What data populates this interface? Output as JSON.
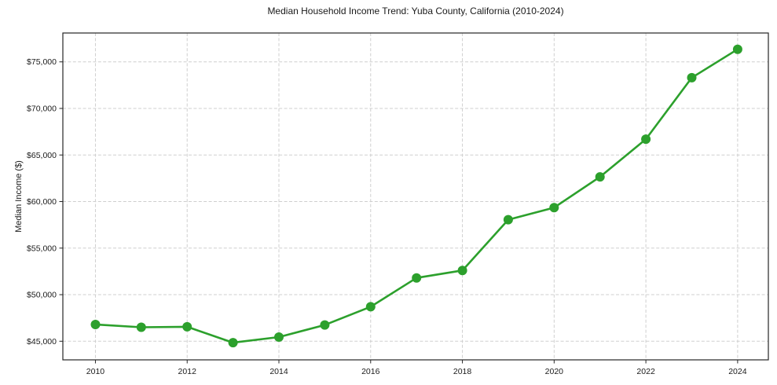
{
  "chart_data": {
    "type": "line",
    "title": "Median Household Income Trend: Yuba County, California (2010-2024)",
    "xlabel": "",
    "ylabel": "Median Income ($)",
    "x": [
      2010,
      2011,
      2012,
      2013,
      2014,
      2015,
      2016,
      2017,
      2018,
      2019,
      2020,
      2021,
      2022,
      2023,
      2024
    ],
    "series": [
      {
        "name": "Median household income",
        "values": [
          46800,
          46500,
          46550,
          44850,
          45450,
          46750,
          48700,
          51800,
          52600,
          58050,
          59350,
          62650,
          66700,
          73300,
          76350
        ]
      }
    ],
    "xlim": [
      2009.29,
      2024.67
    ],
    "ylim": [
      43000,
      78100
    ],
    "xticks": [
      2010,
      2012,
      2014,
      2016,
      2018,
      2020,
      2022,
      2024
    ],
    "xtick_labels": [
      "2010",
      "2012",
      "2014",
      "2016",
      "2018",
      "2020",
      "2022",
      "2024"
    ],
    "yticks": [
      45000,
      50000,
      55000,
      60000,
      65000,
      70000,
      75000
    ],
    "ytick_labels": [
      "$45,000",
      "$50,000",
      "$55,000",
      "$60,000",
      "$65,000",
      "$70,000",
      "$75,000"
    ],
    "grid": true,
    "grid_style": "dashed",
    "legend": "none",
    "colors": {
      "line": "#2ca02c",
      "marker": "#2ca02c",
      "grid": "#cfcfcf",
      "spine": "#262626",
      "text": "#1a1a1a",
      "background": "#ffffff"
    }
  }
}
